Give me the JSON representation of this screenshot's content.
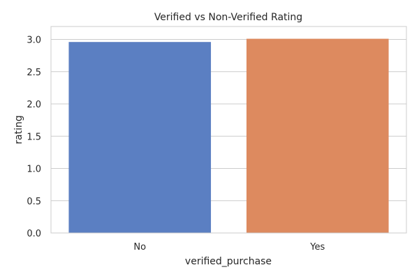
{
  "chart_data": {
    "type": "bar",
    "title": "Verified vs Non-Verified Rating",
    "xlabel": "verified_purchase",
    "ylabel": "rating",
    "categories": [
      "No",
      "Yes"
    ],
    "values": [
      2.96,
      3.01
    ],
    "colors": [
      "#5b7fc2",
      "#dd8a5f"
    ],
    "ylim": [
      0,
      3.2
    ],
    "yticks": [
      0.0,
      0.5,
      1.0,
      1.5,
      2.0,
      2.5,
      3.0
    ],
    "ytick_labels": [
      "0.0",
      "0.5",
      "1.0",
      "1.5",
      "2.0",
      "2.5",
      "3.0"
    ],
    "grid": "horizontal",
    "legend": "none"
  }
}
